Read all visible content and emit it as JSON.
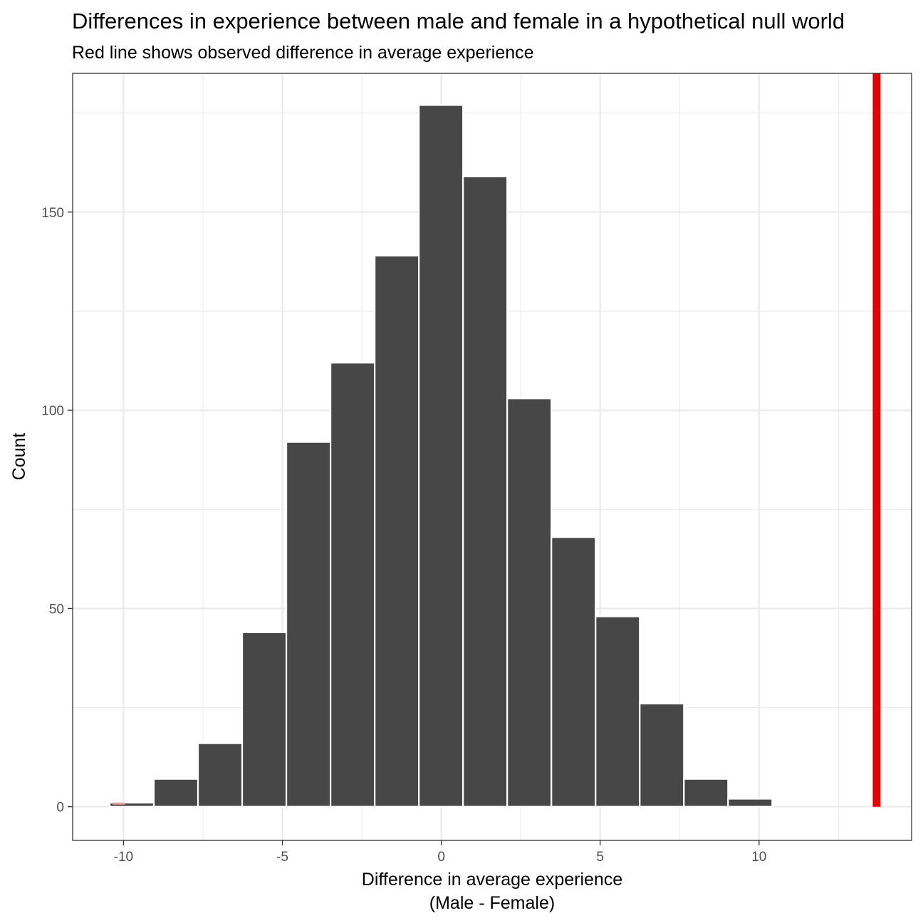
{
  "chart_data": {
    "type": "bar",
    "title": "Differences in experience between male and female in a hypothetical null world",
    "subtitle": "Red line shows observed difference in average experience",
    "xlabel": "Difference in average experience",
    "xlabel_line2": "(Male - Female)",
    "ylabel": "Count",
    "xlim": [
      -11.6,
      14.8
    ],
    "ylim": [
      -8.5,
      185
    ],
    "x_ticks": [
      -10,
      -5,
      0,
      5,
      10
    ],
    "x_tick_labels": [
      "-10",
      "-5",
      "0",
      "5",
      "10"
    ],
    "y_ticks": [
      0,
      50,
      100,
      150
    ],
    "y_tick_labels": [
      "0",
      "50",
      "100",
      "150"
    ],
    "grid": true,
    "bin_width": 1.39,
    "bins": [
      {
        "x": -9.74,
        "count": 1
      },
      {
        "x": -8.35,
        "count": 7
      },
      {
        "x": -6.96,
        "count": 16
      },
      {
        "x": -5.57,
        "count": 44
      },
      {
        "x": -4.18,
        "count": 92
      },
      {
        "x": -2.79,
        "count": 112
      },
      {
        "x": -1.4,
        "count": 139
      },
      {
        "x": -0.01,
        "count": 177
      },
      {
        "x": 1.38,
        "count": 159
      },
      {
        "x": 2.77,
        "count": 103
      },
      {
        "x": 4.16,
        "count": 68
      },
      {
        "x": 5.55,
        "count": 48
      },
      {
        "x": 6.94,
        "count": 26
      },
      {
        "x": 8.33,
        "count": 7
      },
      {
        "x": 9.72,
        "count": 2
      },
      {
        "x": 11.11,
        "count": 0
      },
      {
        "x": 12.5,
        "count": 0
      }
    ],
    "observed_line": {
      "x": 13.7,
      "color": "#e60000"
    },
    "bar_color": "#474747",
    "bar_outline": "#ffffff",
    "grid_color": "#ebebeb"
  }
}
